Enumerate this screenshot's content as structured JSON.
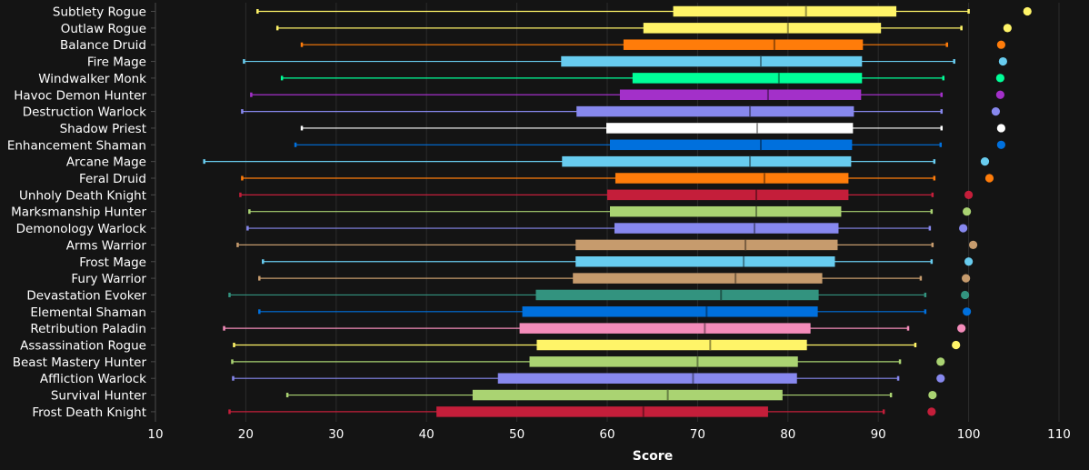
{
  "chart_data": {
    "type": "boxplot",
    "xlabel": "Score",
    "xlim": [
      10,
      110
    ],
    "x_ticks": [
      10,
      20,
      30,
      40,
      50,
      60,
      70,
      80,
      90,
      100,
      110
    ],
    "grid": "vertical",
    "categories": [
      {
        "name": "Subtlety Rogue",
        "color": "#fff468",
        "min": 21.3,
        "q1": 67.3,
        "median": 82.0,
        "q3": 92.0,
        "max": 100.0,
        "outlier": 106.5
      },
      {
        "name": "Outlaw Rogue",
        "color": "#fff468",
        "min": 23.5,
        "q1": 64.0,
        "median": 80.0,
        "q3": 90.3,
        "max": 99.2,
        "outlier": 104.3
      },
      {
        "name": "Balance Druid",
        "color": "#ff7c0a",
        "min": 26.2,
        "q1": 61.8,
        "median": 78.5,
        "q3": 88.3,
        "max": 97.6,
        "outlier": 103.6
      },
      {
        "name": "Fire Mage",
        "color": "#68ccef",
        "min": 19.8,
        "q1": 54.9,
        "median": 77.0,
        "q3": 88.2,
        "max": 98.4,
        "outlier": 103.8
      },
      {
        "name": "Windwalker Monk",
        "color": "#00ff98",
        "min": 24.0,
        "q1": 62.8,
        "median": 79.0,
        "q3": 88.2,
        "max": 97.2,
        "outlier": 103.5
      },
      {
        "name": "Havoc Demon Hunter",
        "color": "#a330c9",
        "min": 20.6,
        "q1": 61.4,
        "median": 77.8,
        "q3": 88.1,
        "max": 97.0,
        "outlier": 103.5
      },
      {
        "name": "Destruction Warlock",
        "color": "#8788ee",
        "min": 19.6,
        "q1": 56.6,
        "median": 75.8,
        "q3": 87.3,
        "max": 97.0,
        "outlier": 103.0
      },
      {
        "name": "Shadow Priest",
        "color": "#ffffff",
        "min": 26.2,
        "q1": 59.9,
        "median": 76.6,
        "q3": 87.2,
        "max": 97.0,
        "outlier": 103.6
      },
      {
        "name": "Enhancement Shaman",
        "color": "#0070dd",
        "min": 25.5,
        "q1": 60.3,
        "median": 77.0,
        "q3": 87.1,
        "max": 96.9,
        "outlier": 103.6
      },
      {
        "name": "Arcane Mage",
        "color": "#68ccef",
        "min": 15.4,
        "q1": 55.0,
        "median": 75.8,
        "q3": 87.0,
        "max": 96.2,
        "outlier": 101.8
      },
      {
        "name": "Feral Druid",
        "color": "#ff7c0a",
        "min": 19.6,
        "q1": 60.9,
        "median": 77.4,
        "q3": 86.7,
        "max": 96.2,
        "outlier": 102.3
      },
      {
        "name": "Unholy Death Knight",
        "color": "#c41e3a",
        "min": 19.4,
        "q1": 60.0,
        "median": 76.5,
        "q3": 86.7,
        "max": 96.0,
        "outlier": 100.0
      },
      {
        "name": "Marksmanship Hunter",
        "color": "#aad372",
        "min": 20.4,
        "q1": 60.3,
        "median": 76.5,
        "q3": 85.9,
        "max": 95.9,
        "outlier": 99.8
      },
      {
        "name": "Demonology Warlock",
        "color": "#8788ee",
        "min": 20.2,
        "q1": 60.8,
        "median": 76.3,
        "q3": 85.6,
        "max": 95.7,
        "outlier": 99.4
      },
      {
        "name": "Arms Warrior",
        "color": "#c69b6d",
        "min": 19.1,
        "q1": 56.5,
        "median": 75.3,
        "q3": 85.5,
        "max": 96.0,
        "outlier": 100.5
      },
      {
        "name": "Frost Mage",
        "color": "#68ccef",
        "min": 21.9,
        "q1": 56.5,
        "median": 75.1,
        "q3": 85.2,
        "max": 95.9,
        "outlier": 100.0
      },
      {
        "name": "Fury Warrior",
        "color": "#c69b6d",
        "min": 21.5,
        "q1": 56.2,
        "median": 74.2,
        "q3": 83.8,
        "max": 94.7,
        "outlier": 99.7
      },
      {
        "name": "Devastation Evoker",
        "color": "#33937f",
        "min": 18.2,
        "q1": 52.1,
        "median": 72.6,
        "q3": 83.4,
        "max": 95.2,
        "outlier": 99.6
      },
      {
        "name": "Elemental Shaman",
        "color": "#0070dd",
        "min": 21.5,
        "q1": 50.6,
        "median": 71.0,
        "q3": 83.3,
        "max": 95.2,
        "outlier": 99.8
      },
      {
        "name": "Retribution Paladin",
        "color": "#f48cba",
        "min": 17.6,
        "q1": 50.3,
        "median": 70.8,
        "q3": 82.5,
        "max": 93.3,
        "outlier": 99.2
      },
      {
        "name": "Assassination Rogue",
        "color": "#fff468",
        "min": 18.7,
        "q1": 52.2,
        "median": 71.4,
        "q3": 82.1,
        "max": 94.1,
        "outlier": 98.6
      },
      {
        "name": "Beast Mastery Hunter",
        "color": "#aad372",
        "min": 18.5,
        "q1": 51.4,
        "median": 70.0,
        "q3": 81.1,
        "max": 92.4,
        "outlier": 96.9
      },
      {
        "name": "Affliction Warlock",
        "color": "#8788ee",
        "min": 18.6,
        "q1": 47.9,
        "median": 69.5,
        "q3": 81.0,
        "max": 92.2,
        "outlier": 96.9
      },
      {
        "name": "Survival Hunter",
        "color": "#aad372",
        "min": 24.6,
        "q1": 45.1,
        "median": 66.7,
        "q3": 79.4,
        "max": 91.4,
        "outlier": 96.0
      },
      {
        "name": "Frost Death Knight",
        "color": "#c41e3a",
        "min": 18.2,
        "q1": 41.1,
        "median": 64.0,
        "q3": 77.8,
        "max": 90.6,
        "outlier": 95.9
      }
    ]
  }
}
